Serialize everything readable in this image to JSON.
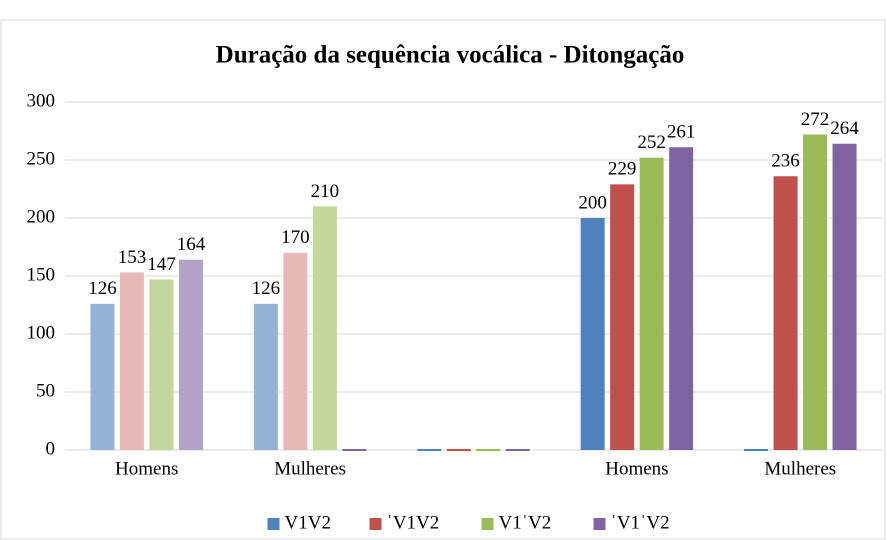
{
  "chart_data": {
    "type": "bar",
    "title": "Duração da sequência vocálica - Ditongação",
    "categories": [
      "Homens",
      "Mulheres",
      null,
      "Homens",
      "Mulheres"
    ],
    "series": [
      {
        "name": "V1V2",
        "color": "#4f81bd",
        "colors": [
          "#95b3d7",
          "#95b3d7",
          "#4f81bd",
          "#4f81bd",
          "#4f81bd"
        ],
        "values": [
          126,
          126,
          0,
          200,
          0
        ]
      },
      {
        "name": "ˈV1V2",
        "color": "#c0504d",
        "colors": [
          "#e6b9b8",
          "#e6b9b8",
          "#c0504d",
          "#c0504d",
          "#c0504d"
        ],
        "values": [
          153,
          170,
          0,
          229,
          236
        ]
      },
      {
        "name": "V1ˈV2",
        "color": "#9bbb59",
        "colors": [
          "#c3d69b",
          "#c3d69b",
          "#9bbb59",
          "#9bbb59",
          "#9bbb59"
        ],
        "values": [
          147,
          210,
          0,
          252,
          272
        ]
      },
      {
        "name": "ˈV1ˈV2",
        "color": "#8064a2",
        "colors": [
          "#b3a2c7",
          "#8064a2",
          "#8064a2",
          "#8064a2",
          "#8064a2"
        ],
        "values": [
          164,
          0,
          0,
          261,
          264
        ]
      }
    ],
    "ylim": [
      0,
      300
    ],
    "yticks": [
      0,
      50,
      100,
      150,
      200,
      250,
      300
    ],
    "grid": true,
    "legend": "bottom"
  }
}
